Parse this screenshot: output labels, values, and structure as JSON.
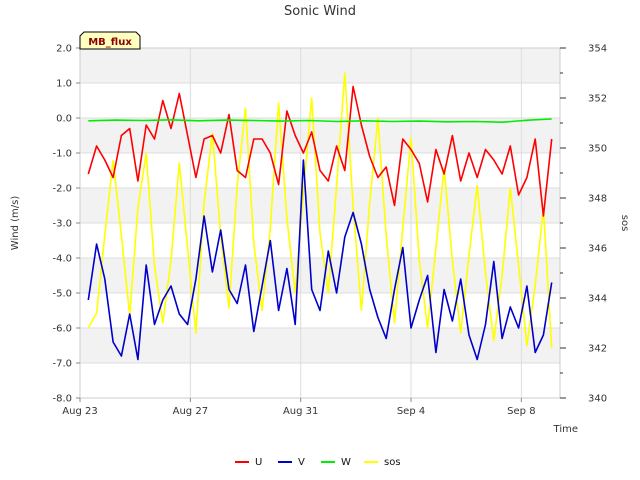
{
  "chart_data": {
    "type": "line",
    "title": "Sonic Wind",
    "site_label": "MB_flux",
    "xlabel": "Time",
    "ylabel": "Wind (m/s)",
    "y2label": "sos",
    "x_tick_labels": [
      "Aug 23",
      "Aug 27",
      "Aug 31",
      "Sep 4",
      "Sep 8"
    ],
    "x_ticks_day": [
      0,
      4,
      8,
      12,
      16
    ],
    "x_range_days": [
      0,
      17.4
    ],
    "ylim": [
      -8,
      2
    ],
    "y_ticks": [
      2,
      1,
      0,
      -1,
      -2,
      -3,
      -4,
      -5,
      -6,
      -7,
      -8
    ],
    "y_tick_labels": [
      "2.0",
      "1.0",
      "0.0",
      "-1.0",
      "-2.0",
      "-3.0",
      "-4.0",
      "-5.0",
      "-6.0",
      "-7.0",
      "-8.0"
    ],
    "y2lim": [
      340,
      354
    ],
    "y2_ticks": [
      354,
      352,
      350,
      348,
      346,
      344,
      342,
      340
    ],
    "y2_tick_labels": [
      "354",
      "352",
      "350",
      "348",
      "346",
      "344",
      "342",
      "340"
    ],
    "grid": true,
    "legend_position": "bottom",
    "series": [
      {
        "name": "U",
        "color": "#ff0000",
        "axis": "left",
        "x": [
          0.3,
          0.6,
          0.9,
          1.2,
          1.5,
          1.8,
          2.1,
          2.4,
          2.7,
          3.0,
          3.3,
          3.6,
          3.9,
          4.2,
          4.5,
          4.8,
          5.1,
          5.4,
          5.7,
          6.0,
          6.3,
          6.6,
          6.9,
          7.2,
          7.5,
          7.8,
          8.1,
          8.4,
          8.7,
          9.0,
          9.3,
          9.6,
          9.9,
          10.2,
          10.5,
          10.8,
          11.1,
          11.4,
          11.7,
          12.0,
          12.3,
          12.6,
          12.9,
          13.2,
          13.5,
          13.8,
          14.1,
          14.4,
          14.7,
          15.0,
          15.3,
          15.6,
          15.9,
          16.2,
          16.5,
          16.8,
          17.1
        ],
        "values": [
          -1.6,
          -0.8,
          -1.2,
          -1.7,
          -0.5,
          -0.3,
          -1.8,
          -0.2,
          -0.6,
          0.5,
          -0.3,
          0.7,
          -0.5,
          -1.7,
          -0.6,
          -0.5,
          -1.0,
          0.1,
          -1.5,
          -1.7,
          -0.6,
          -0.6,
          -1.0,
          -1.9,
          0.2,
          -0.5,
          -1.0,
          -0.4,
          -1.5,
          -1.8,
          -0.8,
          -1.5,
          0.9,
          -0.2,
          -1.1,
          -1.7,
          -1.4,
          -2.5,
          -0.6,
          -0.9,
          -1.3,
          -2.4,
          -0.9,
          -1.6,
          -0.5,
          -1.8,
          -1.0,
          -1.7,
          -0.9,
          -1.2,
          -1.6,
          -0.8,
          -2.2,
          -1.7,
          -0.6,
          -2.8,
          -0.6
        ]
      },
      {
        "name": "V",
        "color": "#0000cc",
        "axis": "left",
        "x": [
          0.3,
          0.6,
          0.9,
          1.2,
          1.5,
          1.8,
          2.1,
          2.4,
          2.7,
          3.0,
          3.3,
          3.6,
          3.9,
          4.2,
          4.5,
          4.8,
          5.1,
          5.4,
          5.7,
          6.0,
          6.3,
          6.6,
          6.9,
          7.2,
          7.5,
          7.8,
          8.1,
          8.4,
          8.7,
          9.0,
          9.3,
          9.6,
          9.9,
          10.2,
          10.5,
          10.8,
          11.1,
          11.4,
          11.7,
          12.0,
          12.3,
          12.6,
          12.9,
          13.2,
          13.5,
          13.8,
          14.1,
          14.4,
          14.7,
          15.0,
          15.3,
          15.6,
          15.9,
          16.2,
          16.5,
          16.8,
          17.1
        ],
        "values": [
          -5.2,
          -3.6,
          -4.6,
          -6.4,
          -6.8,
          -5.6,
          -6.9,
          -4.2,
          -5.9,
          -5.2,
          -4.8,
          -5.6,
          -5.9,
          -4.6,
          -2.8,
          -4.4,
          -3.2,
          -4.9,
          -5.3,
          -4.2,
          -6.1,
          -4.8,
          -3.5,
          -5.5,
          -4.3,
          -5.9,
          -1.2,
          -4.9,
          -5.5,
          -3.8,
          -5.0,
          -3.4,
          -2.7,
          -3.6,
          -4.9,
          -5.7,
          -6.3,
          -4.9,
          -3.7,
          -6.0,
          -5.2,
          -4.5,
          -6.7,
          -4.9,
          -5.8,
          -4.6,
          -6.2,
          -6.9,
          -5.9,
          -4.1,
          -6.3,
          -5.4,
          -6.0,
          -4.8,
          -6.7,
          -6.2,
          -4.7
        ]
      },
      {
        "name": "W",
        "color": "#00ee00",
        "axis": "left",
        "x": [
          0.3,
          1.3,
          2.3,
          3.3,
          4.3,
          5.3,
          6.3,
          7.3,
          8.3,
          9.3,
          10.3,
          11.3,
          12.3,
          13.3,
          14.3,
          15.3,
          16.3,
          17.1
        ],
        "values": [
          -0.08,
          -0.06,
          -0.07,
          -0.05,
          -0.08,
          -0.06,
          -0.07,
          -0.09,
          -0.07,
          -0.1,
          -0.08,
          -0.1,
          -0.09,
          -0.11,
          -0.1,
          -0.12,
          -0.06,
          -0.03
        ]
      },
      {
        "name": "sos",
        "color": "#ffff00",
        "axis": "right",
        "x": [
          0.3,
          0.6,
          0.9,
          1.2,
          1.5,
          1.8,
          2.1,
          2.4,
          2.7,
          3.0,
          3.3,
          3.6,
          3.9,
          4.2,
          4.5,
          4.8,
          5.1,
          5.4,
          5.7,
          6.0,
          6.3,
          6.6,
          6.9,
          7.2,
          7.5,
          7.8,
          8.1,
          8.4,
          8.7,
          9.0,
          9.3,
          9.6,
          9.9,
          10.2,
          10.5,
          10.8,
          11.1,
          11.4,
          11.7,
          12.0,
          12.3,
          12.6,
          12.9,
          13.2,
          13.5,
          13.8,
          14.1,
          14.4,
          14.7,
          15.0,
          15.3,
          15.6,
          15.9,
          16.2,
          16.5,
          16.8,
          17.1
        ],
        "values": [
          342.8,
          343.4,
          346.5,
          349.5,
          346.5,
          343.3,
          347.6,
          349.8,
          345.3,
          343.0,
          345.5,
          349.4,
          346.0,
          342.6,
          347.8,
          350.6,
          346.5,
          343.6,
          348.5,
          351.6,
          346.2,
          343.5,
          346.8,
          351.8,
          347.2,
          344.2,
          348.2,
          352.0,
          346.6,
          344.2,
          348.5,
          353.0,
          347.7,
          343.5,
          347.8,
          351.2,
          346.5,
          343.0,
          346.8,
          350.4,
          345.5,
          342.8,
          346.0,
          349.2,
          345.5,
          342.6,
          345.7,
          348.5,
          345.0,
          342.3,
          344.9,
          348.4,
          345.3,
          342.1,
          344.5,
          347.6,
          342.0
        ]
      }
    ]
  }
}
